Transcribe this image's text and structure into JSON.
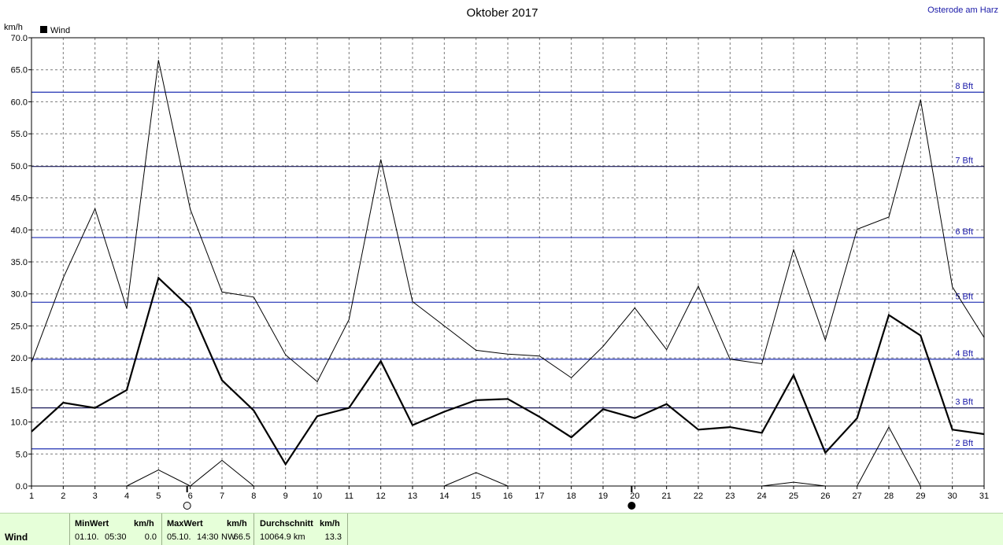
{
  "chart_data": {
    "type": "line",
    "title": "Oktober 2017",
    "location": "Osterode am Harz",
    "ylabel": "km/h",
    "legend": "Wind",
    "legend_position": "top-left",
    "grid": true,
    "x": [
      1,
      2,
      3,
      4,
      5,
      6,
      7,
      8,
      9,
      10,
      11,
      12,
      13,
      14,
      15,
      16,
      17,
      18,
      19,
      20,
      21,
      22,
      23,
      24,
      25,
      26,
      27,
      28,
      29,
      30,
      31
    ],
    "xlim": [
      1,
      31
    ],
    "ylim": [
      0,
      70
    ],
    "yticks": [
      "0.0",
      "5.0",
      "10.0",
      "15.0",
      "20.0",
      "25.0",
      "30.0",
      "35.0",
      "40.0",
      "45.0",
      "50.0",
      "55.0",
      "60.0",
      "65.0",
      "70.0"
    ],
    "series": [
      {
        "role": "max",
        "values": [
          19.3,
          32.5,
          43.3,
          27.7,
          66.5,
          43.2,
          30.3,
          29.5,
          20.5,
          16.3,
          26.0,
          51.0,
          28.8,
          25.0,
          21.2,
          20.6,
          20.3,
          16.9,
          21.8,
          27.8,
          21.3,
          31.2,
          19.8,
          19.1,
          36.9,
          22.8,
          40.1,
          42.0,
          60.3,
          31.1,
          23.2
        ]
      },
      {
        "role": "avg",
        "values": [
          8.5,
          13.0,
          12.2,
          15.0,
          32.5,
          27.8,
          16.5,
          11.8,
          3.4,
          10.9,
          12.2,
          19.5,
          9.5,
          11.6,
          13.4,
          13.6,
          10.8,
          7.6,
          12.0,
          10.6,
          12.8,
          8.8,
          9.2,
          8.3,
          17.3,
          5.2,
          10.6,
          26.7,
          23.5,
          8.8,
          8.1
        ]
      },
      {
        "role": "min",
        "values": [
          null,
          null,
          null,
          0.0,
          2.5,
          0.0,
          4.0,
          0.0,
          null,
          null,
          null,
          null,
          null,
          0.0,
          2.1,
          0.0,
          null,
          null,
          null,
          null,
          null,
          null,
          null,
          0.0,
          0.6,
          0.0,
          0.0,
          9.2,
          0.0,
          0.0,
          null
        ]
      }
    ],
    "beaufort": [
      {
        "label": "2 Bft",
        "kmh": 5.8,
        "color": "#1f2fb3"
      },
      {
        "label": "3 Bft",
        "kmh": 12.2,
        "color": "#1a1a5a"
      },
      {
        "label": "4 Bft",
        "kmh": 19.8,
        "color": "#1f2fb3"
      },
      {
        "label": "5 Bft",
        "kmh": 28.7,
        "color": "#1f2fb3"
      },
      {
        "label": "6 Bft",
        "kmh": 38.8,
        "color": "#1f2fb3"
      },
      {
        "label": "7 Bft",
        "kmh": 49.9,
        "color": "#1a1a5a"
      },
      {
        "label": "8 Bft",
        "kmh": 61.5,
        "color": "#1f2fb3"
      }
    ],
    "moon_phases": [
      {
        "day": 6,
        "phase": "full"
      },
      {
        "day": 20,
        "phase": "new"
      }
    ]
  },
  "footer": {
    "series_label": "Wind",
    "min": {
      "header": "MinWert",
      "unit": "km/h",
      "date": "01.10.",
      "time": "05:30",
      "value": "0.0"
    },
    "max": {
      "header": "MaxWert",
      "unit": "km/h",
      "date": "05.10.",
      "time": "14:30",
      "dir": "NW",
      "value": "66.5"
    },
    "avg": {
      "header": "Durchschnitt",
      "unit": "km/h",
      "distance": "10064.9 km",
      "value": "13.3"
    }
  }
}
